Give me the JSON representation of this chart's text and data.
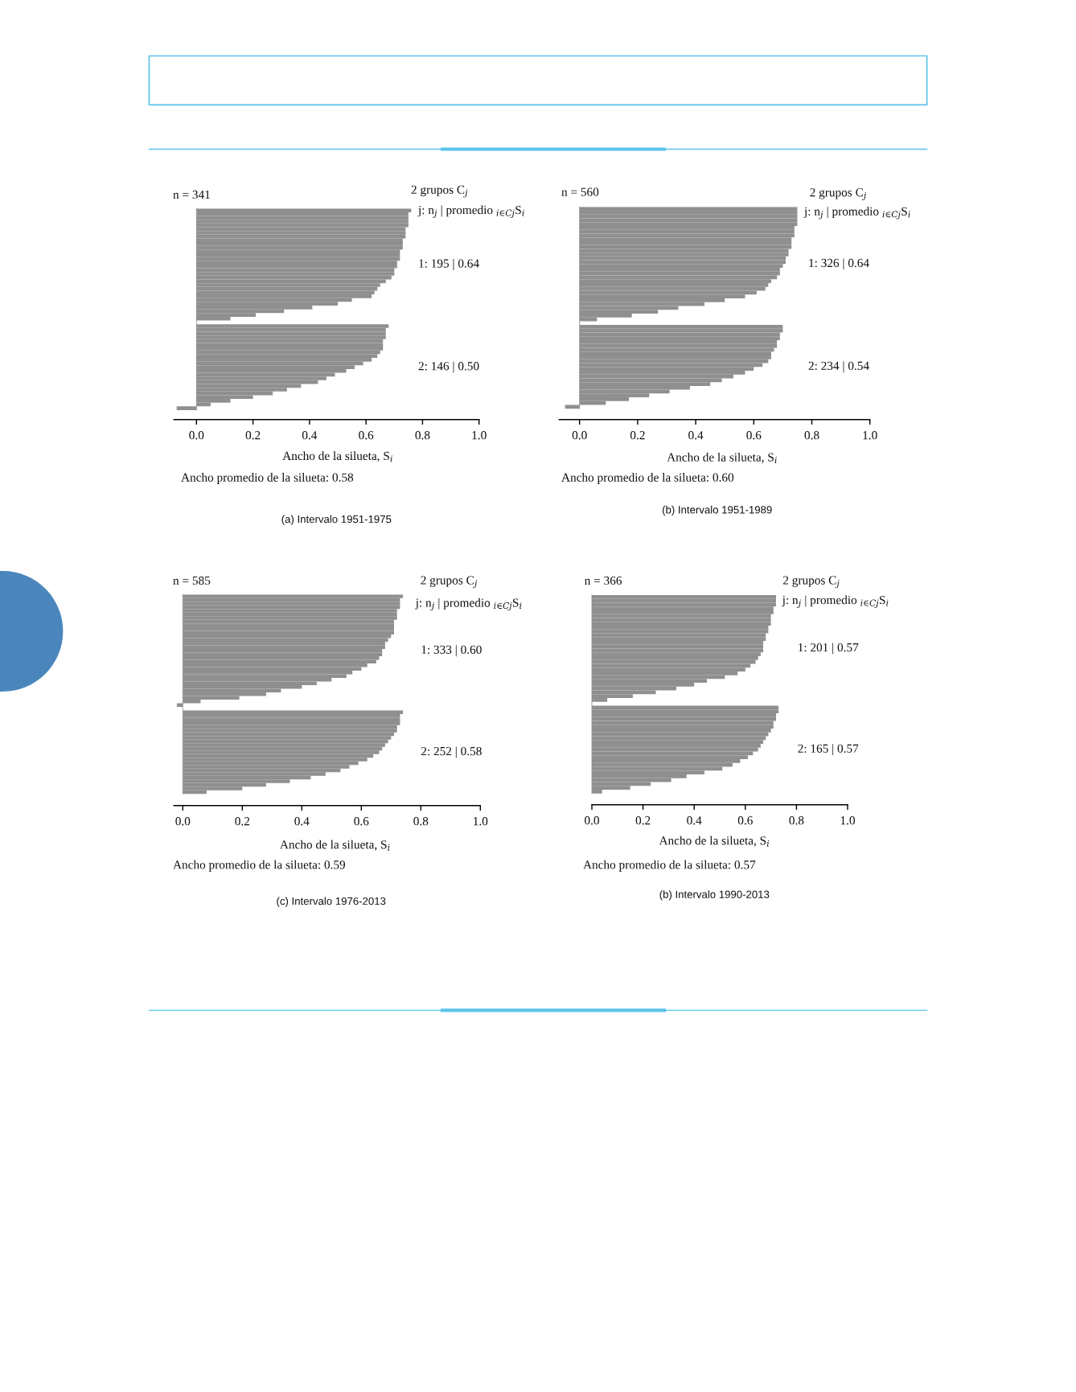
{
  "chart_data": [
    {
      "type": "bar",
      "orientation": "horizontal",
      "color": "#8f8f8f",
      "tick_labels": "x",
      "categories": [
        null,
        null,
        null,
        null,
        null,
        null,
        null,
        null,
        null,
        null,
        null,
        null,
        null,
        null,
        null,
        null,
        null,
        null,
        null,
        null,
        null,
        null,
        null,
        null,
        null,
        null,
        null,
        null,
        null,
        null,
        null,
        null,
        null,
        null,
        null,
        null,
        null,
        null,
        null,
        null,
        null,
        null,
        null,
        null,
        null,
        null,
        null,
        null,
        null,
        null,
        null,
        null,
        null,
        null
      ],
      "values": [
        0.76,
        0.75,
        0.75,
        0.75,
        0.75,
        0.74,
        0.74,
        0.74,
        0.73,
        0.73,
        0.73,
        0.72,
        0.72,
        0.72,
        0.71,
        0.71,
        0.7,
        0.7,
        0.69,
        0.67,
        0.65,
        0.64,
        0.63,
        0.62,
        0.55,
        0.5,
        0.41,
        0.31,
        0.21,
        0.12,
        null,
        0.68,
        0.67,
        0.67,
        0.67,
        0.66,
        0.66,
        0.66,
        0.65,
        0.64,
        0.62,
        0.59,
        0.56,
        0.53,
        0.49,
        0.46,
        0.43,
        0.37,
        0.32,
        0.27,
        0.2,
        0.12,
        0.05,
        -0.07
      ],
      "xlim": [
        -0.08,
        1.0
      ],
      "xticks": [
        {
          "value": 0,
          "label": "0.0"
        },
        {
          "value": 0.2,
          "label": "0.2"
        },
        {
          "value": 0.4,
          "label": "0.4"
        },
        {
          "value": 0.6,
          "label": "0.6"
        },
        {
          "value": 0.8,
          "label": "0.8"
        },
        {
          "value": 1.0,
          "label": "1.0"
        }
      ],
      "xlabel": "Ancho de la silueta, S$_{i}$",
      "annotations": [
        "n = 341",
        "2 grupos C$_{j}$",
        "j: n$_{j}$ | promedio $_{i∈Cj}$S$_{i}$",
        "1: 195 | 0.64",
        "2: 146 | 0.50",
        "Ancho promedio de la silueta: 0.58",
        "(a) Intervalo 1951-1975"
      ]
    },
    {
      "type": "bar",
      "orientation": "horizontal",
      "color": "#8f8f8f",
      "tick_labels": "x",
      "categories": [
        null,
        null,
        null,
        null,
        null,
        null,
        null,
        null,
        null,
        null,
        null,
        null,
        null,
        null,
        null,
        null,
        null,
        null,
        null,
        null,
        null,
        null,
        null,
        null,
        null,
        null,
        null,
        null,
        null,
        null,
        null,
        null,
        null,
        null,
        null,
        null,
        null,
        null,
        null,
        null,
        null,
        null,
        null,
        null,
        null,
        null,
        null,
        null,
        null,
        null,
        null,
        null,
        null
      ],
      "values": [
        0.75,
        0.75,
        0.75,
        0.75,
        0.75,
        0.74,
        0.74,
        0.74,
        0.73,
        0.73,
        0.73,
        0.72,
        0.72,
        0.71,
        0.71,
        0.7,
        0.69,
        0.69,
        0.68,
        0.66,
        0.65,
        0.64,
        0.61,
        0.57,
        0.5,
        0.43,
        0.34,
        0.27,
        0.18,
        0.06,
        null,
        0.7,
        0.7,
        0.69,
        0.69,
        0.68,
        0.68,
        0.67,
        0.66,
        0.66,
        0.65,
        0.63,
        0.6,
        0.57,
        0.53,
        0.49,
        0.45,
        0.38,
        0.31,
        0.24,
        0.17,
        0.09,
        -0.05
      ],
      "xlim": [
        -0.07,
        1.0
      ],
      "xticks": [
        {
          "value": 0,
          "label": "0.0"
        },
        {
          "value": 0.2,
          "label": "0.2"
        },
        {
          "value": 0.4,
          "label": "0.4"
        },
        {
          "value": 0.6,
          "label": "0.6"
        },
        {
          "value": 0.8,
          "label": "0.8"
        },
        {
          "value": 1.0,
          "label": "1.0"
        }
      ],
      "xlabel": "Ancho de la silueta, S$_{i}$",
      "annotations": [
        "n = 560",
        "2 grupos C$_{j}$",
        "j: n$_{j}$ | promedio $_{i∈Cj}$S$_{i}$",
        "1: 326 | 0.64",
        "2: 234 | 0.54",
        "Ancho promedio de la silueta: 0.60",
        "(b) Intervalo 1951-1989"
      ]
    },
    {
      "type": "bar",
      "orientation": "horizontal",
      "color": "#8f8f8f",
      "tick_labels": "x",
      "categories": [
        null,
        null,
        null,
        null,
        null,
        null,
        null,
        null,
        null,
        null,
        null,
        null,
        null,
        null,
        null,
        null,
        null,
        null,
        null,
        null,
        null,
        null,
        null,
        null,
        null,
        null,
        null,
        null,
        null,
        null,
        null,
        null,
        null,
        null,
        null,
        null,
        null,
        null,
        null,
        null,
        null,
        null,
        null,
        null,
        null,
        null,
        null,
        null,
        null,
        null,
        null,
        null,
        null,
        null,
        null
      ],
      "values": [
        0.74,
        0.73,
        0.73,
        0.73,
        0.72,
        0.72,
        0.72,
        0.71,
        0.71,
        0.71,
        0.71,
        0.7,
        0.69,
        0.68,
        0.68,
        0.67,
        0.67,
        0.66,
        0.65,
        0.62,
        0.6,
        0.57,
        0.55,
        0.5,
        0.45,
        0.4,
        0.33,
        0.28,
        0.19,
        0.06,
        -0.02,
        null,
        0.74,
        0.73,
        0.73,
        0.73,
        0.72,
        0.72,
        0.71,
        0.7,
        0.69,
        0.68,
        0.67,
        0.66,
        0.64,
        0.62,
        0.59,
        0.56,
        0.53,
        0.48,
        0.43,
        0.36,
        0.28,
        0.2,
        0.08
      ],
      "xlim": [
        -0.03,
        1.0
      ],
      "xticks": [
        {
          "value": 0,
          "label": "0.0"
        },
        {
          "value": 0.2,
          "label": "0.2"
        },
        {
          "value": 0.4,
          "label": "0.4"
        },
        {
          "value": 0.6,
          "label": "0.6"
        },
        {
          "value": 0.8,
          "label": "0.8"
        },
        {
          "value": 1.0,
          "label": "1.0"
        }
      ],
      "xlabel": "Ancho de la silueta, S$_{i}$",
      "annotations": [
        "n = 585",
        "2 grupos C$_{j}$",
        "j: n$_{j}$ | promedio $_{i∈Cj}$S$_{i}$",
        "1: 333 | 0.60",
        "2: 252 | 0.58",
        "Ancho promedio de la silueta: 0.59",
        "(c) Intervalo 1976-2013"
      ]
    },
    {
      "type": "bar",
      "orientation": "horizontal",
      "color": "#8f8f8f",
      "tick_labels": "x",
      "categories": [
        null,
        null,
        null,
        null,
        null,
        null,
        null,
        null,
        null,
        null,
        null,
        null,
        null,
        null,
        null,
        null,
        null,
        null,
        null,
        null,
        null,
        null,
        null,
        null,
        null,
        null,
        null,
        null,
        null,
        null,
        null,
        null,
        null,
        null,
        null,
        null,
        null,
        null,
        null,
        null,
        null,
        null,
        null,
        null,
        null,
        null,
        null,
        null,
        null,
        null,
        null,
        null
      ],
      "values": [
        0.72,
        0.72,
        0.72,
        0.71,
        0.71,
        0.7,
        0.7,
        0.7,
        0.69,
        0.69,
        0.68,
        0.68,
        0.67,
        0.67,
        0.67,
        0.66,
        0.65,
        0.64,
        0.62,
        0.6,
        0.57,
        0.52,
        0.45,
        0.4,
        0.33,
        0.25,
        0.16,
        0.06,
        null,
        0.73,
        0.73,
        0.72,
        0.72,
        0.71,
        0.71,
        0.7,
        0.69,
        0.68,
        0.67,
        0.66,
        0.65,
        0.63,
        0.61,
        0.58,
        0.55,
        0.51,
        0.44,
        0.37,
        0.31,
        0.23,
        0.15,
        0.04
      ],
      "xlim": [
        0,
        1.0
      ],
      "xticks": [
        {
          "value": 0,
          "label": "0.0"
        },
        {
          "value": 0.2,
          "label": "0.2"
        },
        {
          "value": 0.4,
          "label": "0.4"
        },
        {
          "value": 0.6,
          "label": "0.6"
        },
        {
          "value": 0.8,
          "label": "0.8"
        },
        {
          "value": 1.0,
          "label": "1.0"
        }
      ],
      "xlabel": "Ancho de la silueta, S$_{i}$",
      "annotations": [
        "n = 366",
        "2 grupos C$_{j}$",
        "j: n$_{j}$ | promedio $_{i∈Cj}$S$_{i}$",
        "1: 201 | 0.57",
        "2: 165 | 0.57",
        "Ancho promedio de la silueta: 0.57",
        "(b) Intervalo 1990-2013"
      ]
    }
  ]
}
